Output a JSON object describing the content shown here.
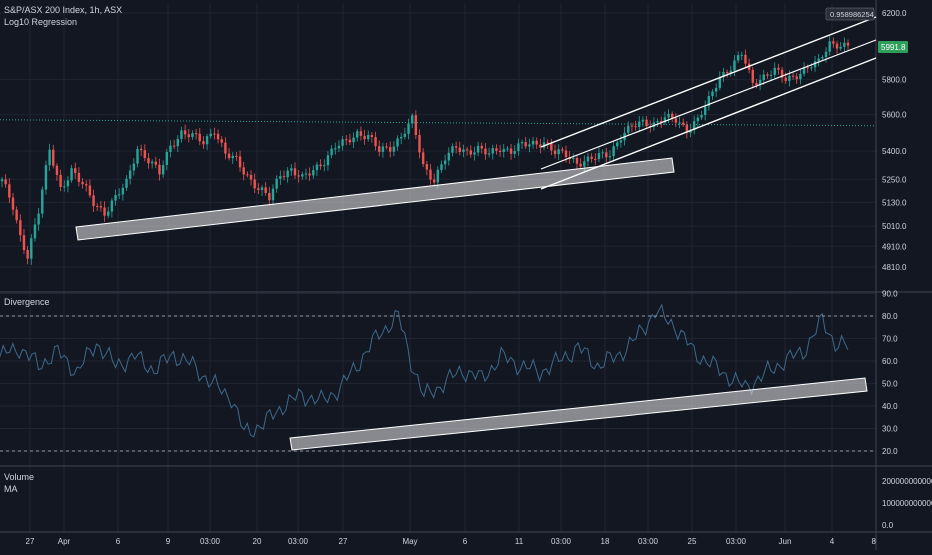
{
  "header": {
    "symbol": "S&P/ASX 200 Index, 1h, ASX",
    "indicator": "Log10 Regression"
  },
  "price_pane": {
    "top_tag": "0.958986254",
    "last_price": "5991.8"
  },
  "osc_pane": {
    "label": "Divergence"
  },
  "vol_pane": {
    "label": "Volume",
    "ma_label": "MA"
  },
  "colors": {
    "background": "#131722",
    "grid": "#1f2433",
    "up": "#26a69a",
    "down": "#ef5350",
    "osc_line": "#3d6a8a",
    "price_tag": "#2e9e5b",
    "highlight": "#e8e8e8"
  },
  "chart_data": [
    {
      "type": "candlestick",
      "title": "S&P/ASX 200 Index, 1h, ASX",
      "ylim": [
        4700,
        6230
      ],
      "y_ticks": [
        "6200.0",
        "5800.0",
        "5600.0",
        "5400.0",
        "5250.0",
        "5130.0",
        "5010.0",
        "4910.0",
        "4810.0"
      ],
      "x_ticks": [
        "27",
        "Apr",
        "6",
        "9",
        "03:00",
        "20",
        "03:00",
        "27",
        "May",
        "6",
        "11",
        "03:00",
        "18",
        "03:00",
        "25",
        "03:00",
        "Jun",
        "4",
        "8"
      ],
      "reference_level": 5555,
      "last_price": 5991.8,
      "close_anchors": [
        [
          0,
          5250
        ],
        [
          3,
          5100
        ],
        [
          5,
          4950
        ],
        [
          7,
          4870
        ],
        [
          10,
          5090
        ],
        [
          13,
          5400
        ],
        [
          16,
          5200
        ],
        [
          19,
          5300
        ],
        [
          22,
          5220
        ],
        [
          25,
          5130
        ],
        [
          28,
          5080
        ],
        [
          31,
          5150
        ],
        [
          34,
          5230
        ],
        [
          37,
          5420
        ],
        [
          40,
          5350
        ],
        [
          43,
          5280
        ],
        [
          46,
          5430
        ],
        [
          49,
          5500
        ],
        [
          52,
          5480
        ],
        [
          55,
          5450
        ],
        [
          58,
          5520
        ],
        [
          61,
          5380
        ],
        [
          64,
          5350
        ],
        [
          67,
          5270
        ],
        [
          70,
          5200
        ],
        [
          73,
          5150
        ],
        [
          76,
          5280
        ],
        [
          79,
          5300
        ],
        [
          82,
          5250
        ],
        [
          85,
          5300
        ],
        [
          88,
          5350
        ],
        [
          91,
          5420
        ],
        [
          94,
          5450
        ],
        [
          97,
          5500
        ],
        [
          100,
          5480
        ],
        [
          103,
          5400
        ],
        [
          106,
          5420
        ],
        [
          109,
          5480
        ],
        [
          112,
          5570
        ],
        [
          115,
          5320
        ],
        [
          118,
          5250
        ],
        [
          121,
          5360
        ],
        [
          124,
          5420
        ],
        [
          127,
          5400
        ],
        [
          130,
          5410
        ],
        [
          133,
          5380
        ],
        [
          136,
          5420
        ],
        [
          139,
          5400
        ],
        [
          142,
          5430
        ],
        [
          145,
          5440
        ],
        [
          148,
          5450
        ],
        [
          151,
          5390
        ],
        [
          154,
          5380
        ],
        [
          157,
          5340
        ],
        [
          160,
          5350
        ],
        [
          163,
          5370
        ],
        [
          166,
          5390
        ],
        [
          169,
          5480
        ],
        [
          172,
          5530
        ],
        [
          175,
          5560
        ],
        [
          178,
          5550
        ],
        [
          181,
          5580
        ],
        [
          184,
          5570
        ],
        [
          187,
          5520
        ],
        [
          190,
          5570
        ],
        [
          193,
          5680
        ],
        [
          196,
          5820
        ],
        [
          199,
          5870
        ],
        [
          202,
          5950
        ],
        [
          205,
          5780
        ],
        [
          208,
          5820
        ],
        [
          211,
          5850
        ],
        [
          214,
          5800
        ],
        [
          217,
          5830
        ],
        [
          220,
          5870
        ],
        [
          223,
          5900
        ],
        [
          226,
          6020
        ],
        [
          229,
          6000
        ],
        [
          231,
          5992
        ]
      ]
    },
    {
      "type": "line",
      "title": "Divergence",
      "ylim": [
        15,
        90
      ],
      "y_ticks": [
        "90.0",
        "80.0",
        "70.0",
        "60.0",
        "50.0",
        "40.0",
        "30.0",
        "20.0"
      ],
      "bands": [
        80,
        20
      ],
      "anchors": [
        [
          0,
          62
        ],
        [
          6,
          66
        ],
        [
          12,
          58
        ],
        [
          18,
          64
        ],
        [
          24,
          55
        ],
        [
          30,
          68
        ],
        [
          36,
          58
        ],
        [
          42,
          62
        ],
        [
          48,
          56
        ],
        [
          54,
          63
        ],
        [
          60,
          58
        ],
        [
          66,
          50
        ],
        [
          72,
          44
        ],
        [
          76,
          28
        ],
        [
          82,
          32
        ],
        [
          88,
          40
        ],
        [
          94,
          45
        ],
        [
          100,
          42
        ],
        [
          106,
          48
        ],
        [
          112,
          60
        ],
        [
          118,
          72
        ],
        [
          124,
          80
        ],
        [
          128,
          60
        ],
        [
          132,
          44
        ],
        [
          138,
          50
        ],
        [
          144,
          56
        ],
        [
          150,
          52
        ],
        [
          156,
          62
        ],
        [
          162,
          58
        ],
        [
          168,
          55
        ],
        [
          174,
          60
        ],
        [
          180,
          66
        ],
        [
          186,
          58
        ],
        [
          192,
          62
        ],
        [
          198,
          70
        ],
        [
          204,
          82
        ],
        [
          210,
          76
        ],
        [
          216,
          64
        ],
        [
          222,
          58
        ],
        [
          228,
          52
        ],
        [
          232,
          48
        ],
        [
          238,
          54
        ],
        [
          244,
          60
        ],
        [
          250,
          64
        ],
        [
          256,
          78
        ],
        [
          260,
          68
        ],
        [
          264,
          66
        ]
      ]
    },
    {
      "type": "bar",
      "title": "Volume",
      "y_ticks": [
        "200000000000.0",
        "100000000000.0",
        "0.0"
      ],
      "values": []
    }
  ]
}
